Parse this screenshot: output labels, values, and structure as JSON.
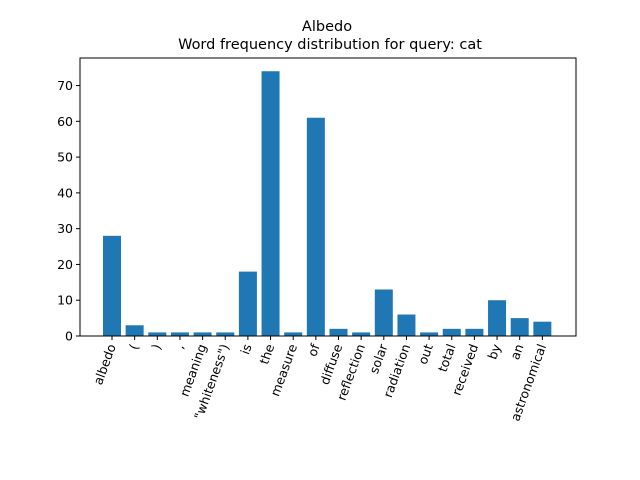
{
  "chart_data": {
    "type": "bar",
    "title": "Albedo",
    "subtitle": "Word frequency distribution for query: cat",
    "xlabel": "",
    "ylabel": "",
    "categories": [
      "albedo",
      "(",
      ")",
      ",",
      "meaning",
      "\"whiteness\")",
      "is",
      "the",
      "measure",
      "of",
      "diffuse",
      "reflection",
      "solar",
      "radiation",
      "out",
      "total",
      "received",
      "by",
      "an",
      "astronomical"
    ],
    "values": [
      28,
      3,
      1,
      1,
      1,
      1,
      18,
      74,
      1,
      61,
      2,
      1,
      13,
      6,
      1,
      2,
      2,
      10,
      5,
      4
    ],
    "ylim": [
      0,
      77.7
    ],
    "yticks": [
      0,
      10,
      20,
      30,
      40,
      50,
      60,
      70
    ],
    "grid": false,
    "legend": "none",
    "bar_color": "#1f77b4"
  }
}
